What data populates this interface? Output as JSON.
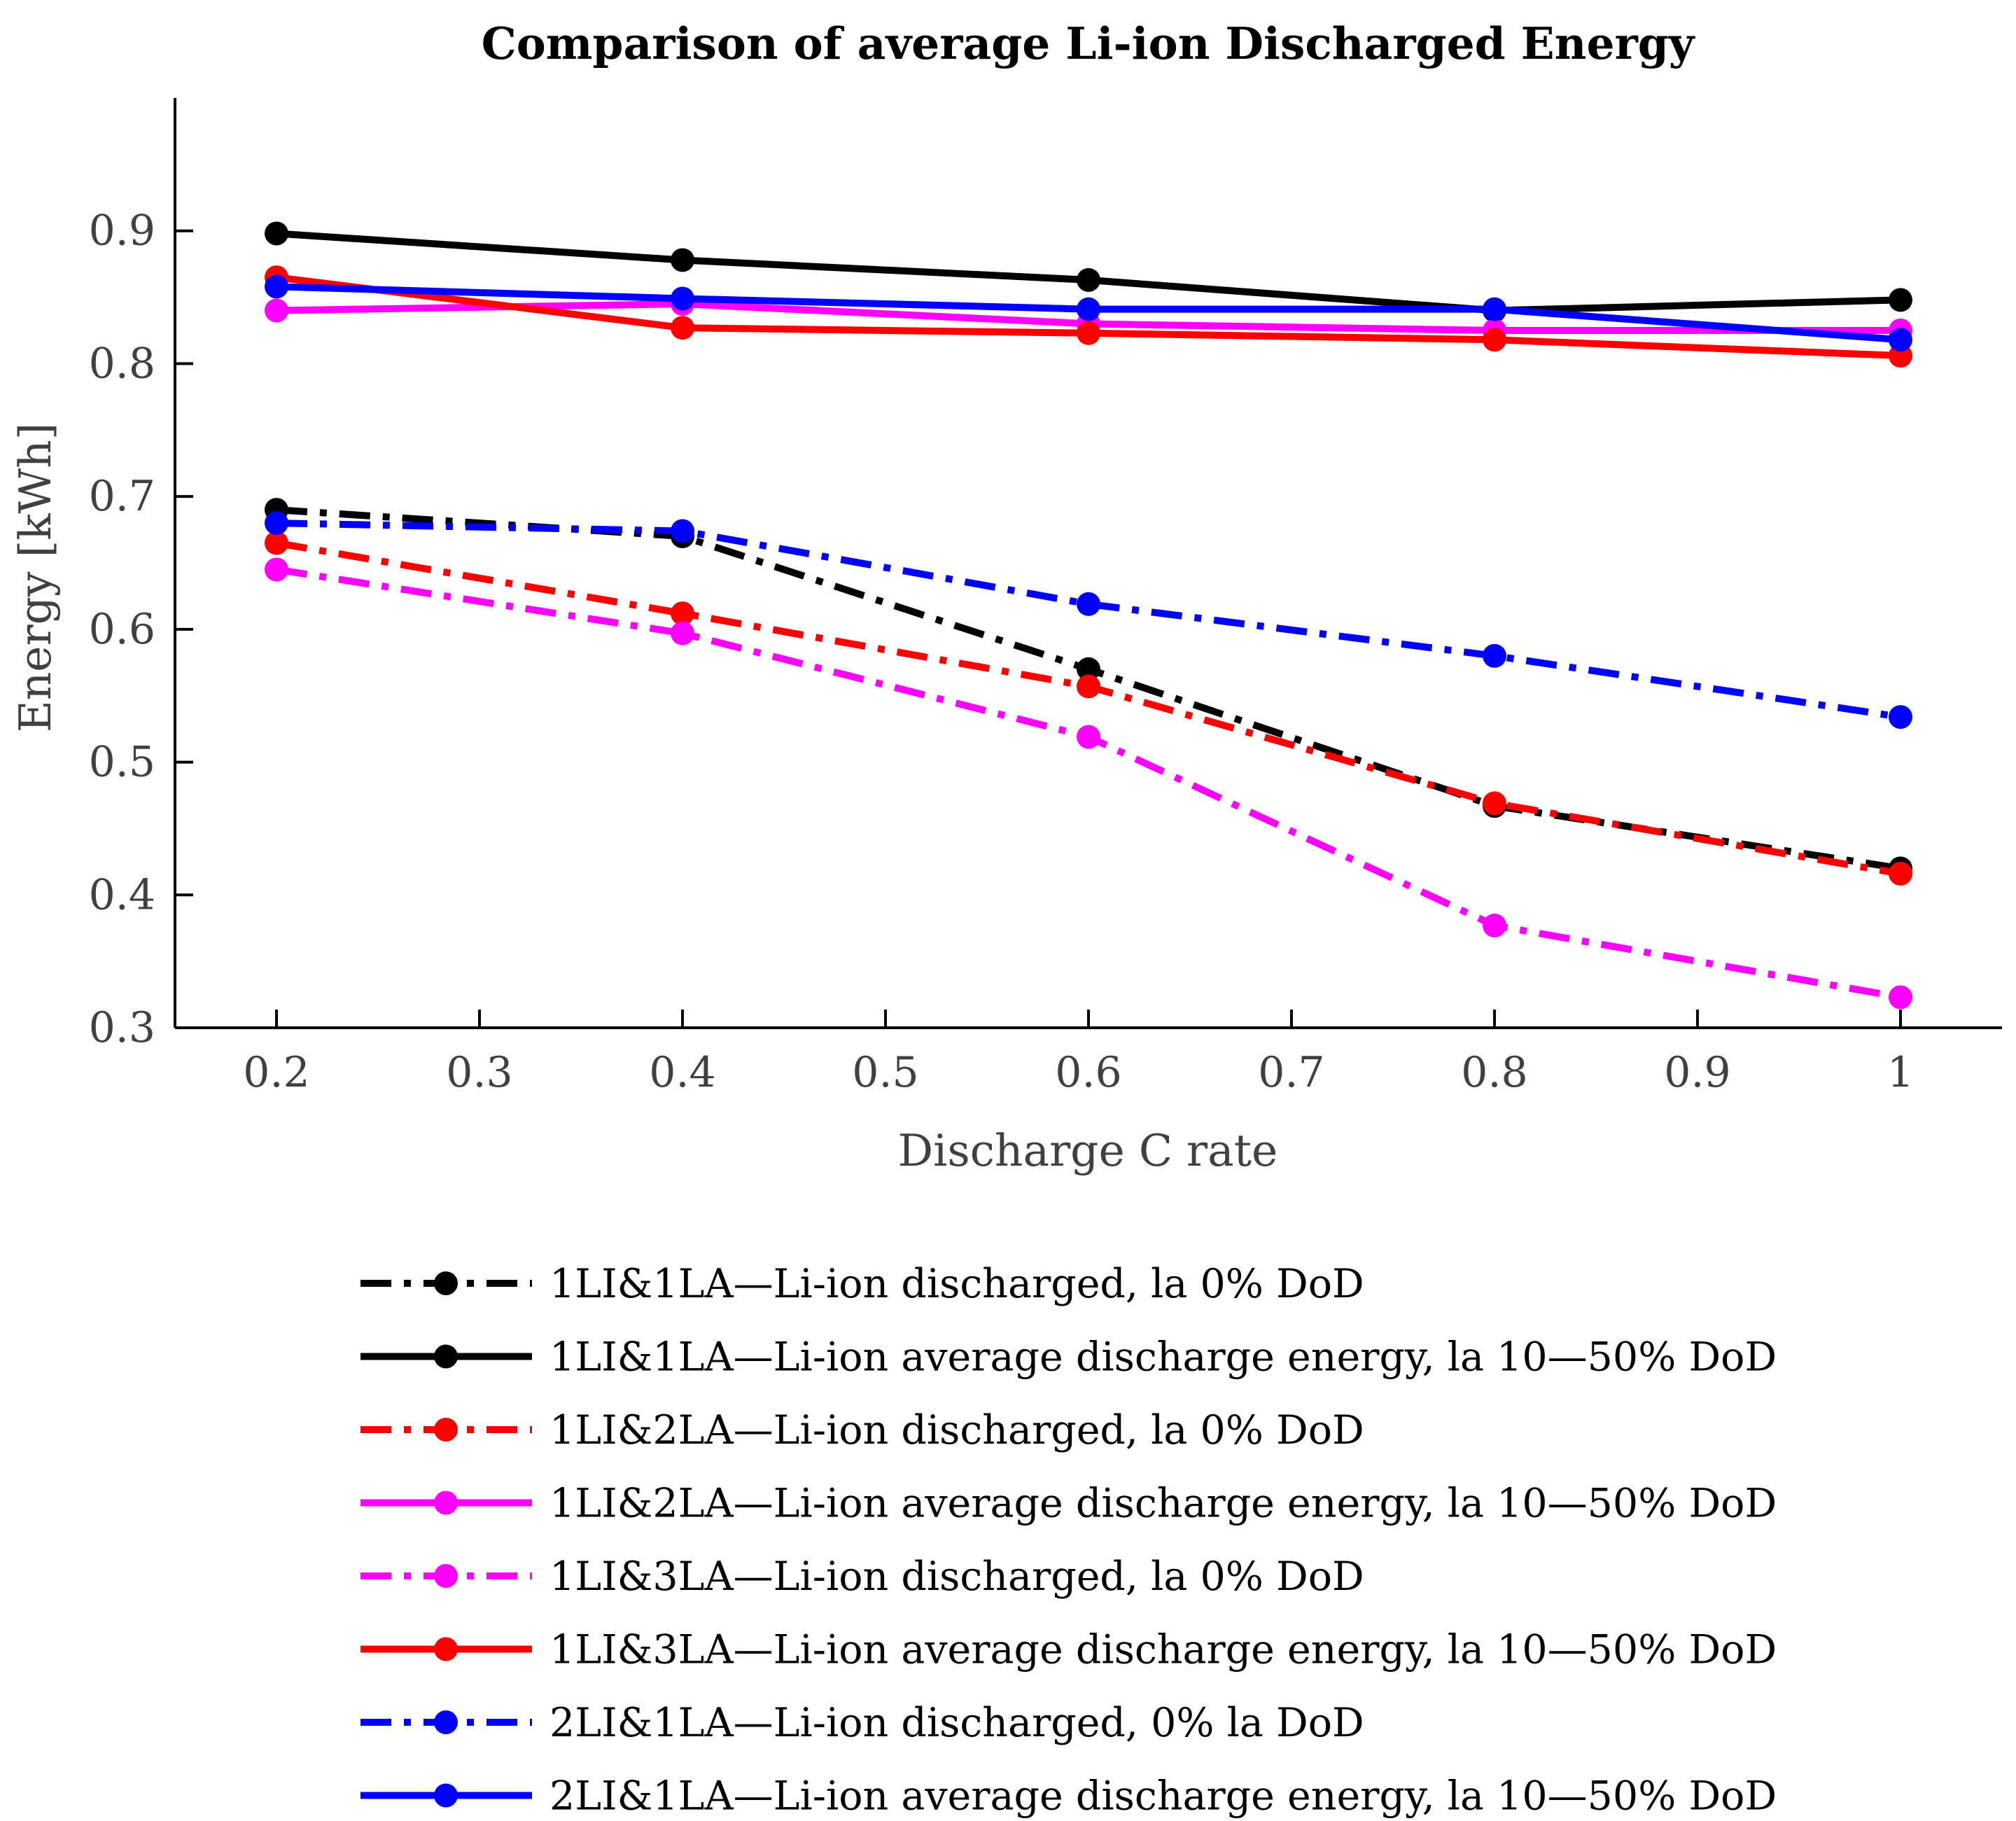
{
  "chart_data": {
    "type": "line",
    "title": "Comparison of average Li-ion Discharged Energy",
    "xlabel": "Discharge C rate",
    "ylabel": "Energy [kWh]",
    "xlim": [
      0.15,
      1.05
    ],
    "ylim": [
      0.3,
      1.0
    ],
    "xticks": [
      0.2,
      0.3,
      0.4,
      0.5,
      0.6,
      0.7,
      0.8,
      0.9,
      1.0
    ],
    "xtick_labels": [
      "0.2",
      "0.3",
      "0.4",
      "0.5",
      "0.6",
      "0.7",
      "0.8",
      "0.9",
      "1"
    ],
    "yticks": [
      0.3,
      0.4,
      0.5,
      0.6,
      0.7,
      0.8,
      0.9
    ],
    "ytick_labels": [
      "0.3",
      "0.4",
      "0.5",
      "0.6",
      "0.7",
      "0.8",
      "0.9"
    ],
    "grid": false,
    "legend_position": "bottom",
    "x": [
      0.2,
      0.4,
      0.6,
      0.8,
      1.0
    ],
    "series": [
      {
        "name": "1LI&1LA—Li-ion discharged, la 0% DoD",
        "color": "#000000",
        "style": "dashdot",
        "values": [
          0.69,
          0.67,
          0.57,
          0.467,
          0.42
        ]
      },
      {
        "name": "1LI&1LA—Li-ion average discharge energy, la 10—50% DoD",
        "color": "#000000",
        "style": "solid",
        "values": [
          0.898,
          0.878,
          0.863,
          0.84,
          0.848
        ]
      },
      {
        "name": "1LI&2LA—Li-ion discharged, la 0% DoD",
        "color": "#ff0000",
        "style": "dashdot",
        "values": [
          0.665,
          0.612,
          0.557,
          0.469,
          0.416
        ]
      },
      {
        "name": "1LI&2LA—Li-ion average discharge energy, la 10—50% DoD",
        "color": "#ff00ff",
        "style": "solid",
        "values": [
          0.84,
          0.845,
          0.83,
          0.825,
          0.825
        ]
      },
      {
        "name": "1LI&3LA—Li-ion discharged, la 0% DoD",
        "color": "#ff00ff",
        "style": "dashdot",
        "values": [
          0.645,
          0.597,
          0.519,
          0.377,
          0.323
        ]
      },
      {
        "name": "1LI&3LA—Li-ion average discharge energy, la 10—50% DoD",
        "color": "#ff0000",
        "style": "solid",
        "values": [
          0.865,
          0.827,
          0.823,
          0.818,
          0.806
        ]
      },
      {
        "name": "2LI&1LA—Li-ion discharged, 0% la DoD",
        "color": "#0000ff",
        "style": "dashdot",
        "values": [
          0.68,
          0.674,
          0.619,
          0.58,
          0.534
        ]
      },
      {
        "name": "2LI&1LA—Li-ion average discharge energy, la 10—50% DoD",
        "color": "#0000ff",
        "style": "solid",
        "values": [
          0.858,
          0.849,
          0.841,
          0.841,
          0.818
        ]
      }
    ]
  }
}
